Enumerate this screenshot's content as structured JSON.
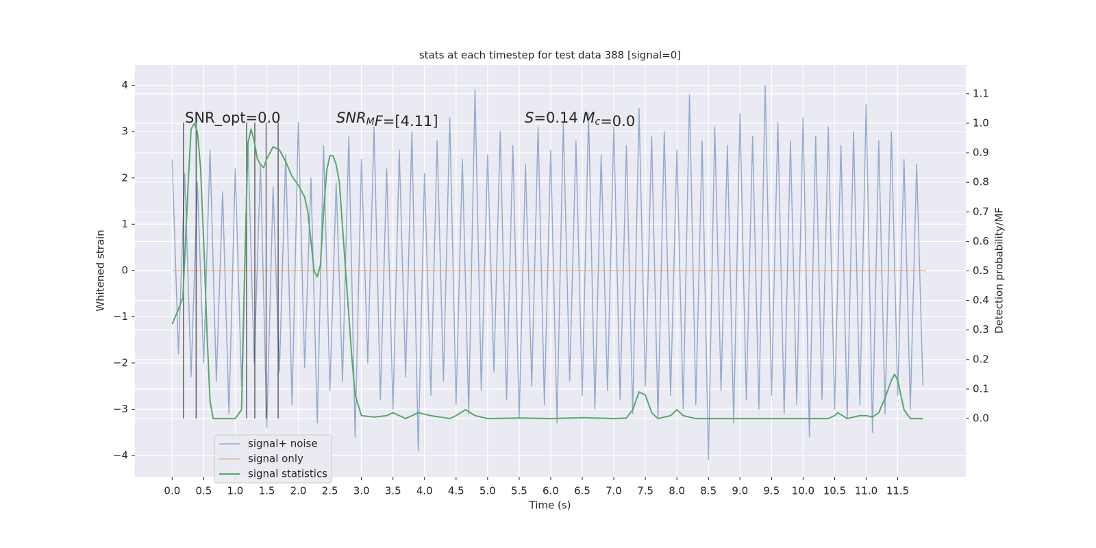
{
  "chart_data": {
    "type": "line",
    "title": "stats at each timestep for test data 388 [signal=0]",
    "xlabel": "Time (s)",
    "ylabel": "Whitened strain",
    "y2label": "Detection probability/MF",
    "xlim": [
      -0.59,
      12.58
    ],
    "ylim": [
      -4.46,
      4.44
    ],
    "y2lim": [
      -0.197,
      1.197
    ],
    "xticks": [
      {
        "value": 0,
        "label": "0.0"
      },
      {
        "value": 0.5,
        "label": "0.5"
      },
      {
        "value": 1,
        "label": "1.0"
      },
      {
        "value": 1.5,
        "label": "1.5"
      },
      {
        "value": 2,
        "label": "2.0"
      },
      {
        "value": 2.5,
        "label": "2.5"
      },
      {
        "value": 3,
        "label": "3.0"
      },
      {
        "value": 3.5,
        "label": "3.5"
      },
      {
        "value": 4,
        "label": "4.0"
      },
      {
        "value": 4.5,
        "label": "4.5"
      },
      {
        "value": 5,
        "label": "5.0"
      },
      {
        "value": 5.5,
        "label": "5.5"
      },
      {
        "value": 6,
        "label": "6.0"
      },
      {
        "value": 6.5,
        "label": "6.5"
      },
      {
        "value": 7,
        "label": "7.0"
      },
      {
        "value": 7.5,
        "label": "7.5"
      },
      {
        "value": 8,
        "label": "8.0"
      },
      {
        "value": 8.5,
        "label": "8.5"
      },
      {
        "value": 9,
        "label": "9.0"
      },
      {
        "value": 9.5,
        "label": "9.5"
      },
      {
        "value": 10,
        "label": "10.0"
      },
      {
        "value": 10.5,
        "label": "10.5"
      },
      {
        "value": 11,
        "label": "11.0"
      },
      {
        "value": 11.5,
        "label": "11.5"
      }
    ],
    "yticks": [
      {
        "value": -4,
        "label": "−4"
      },
      {
        "value": -3,
        "label": "−3"
      },
      {
        "value": -2,
        "label": "−2"
      },
      {
        "value": -1,
        "label": "−1"
      },
      0,
      1,
      2,
      3,
      4
    ],
    "y2ticks": [
      {
        "value": 0,
        "label": "0.0"
      },
      {
        "value": 0.1,
        "label": "0.1"
      },
      {
        "value": 0.2,
        "label": "0.2"
      },
      {
        "value": 0.3,
        "label": "0.3"
      },
      {
        "value": 0.4,
        "label": "0.4"
      },
      {
        "value": 0.5,
        "label": "0.5"
      },
      {
        "value": 0.6,
        "label": "0.6"
      },
      {
        "value": 0.7,
        "label": "0.7"
      },
      {
        "value": 0.8,
        "label": "0.8"
      },
      {
        "value": 0.9,
        "label": "0.9"
      },
      {
        "value": 1.0,
        "label": "1.0"
      },
      {
        "value": 1.1,
        "label": "1.1"
      }
    ],
    "grid": true,
    "series": [
      {
        "name": "signal+ noise",
        "color": "#4c72b0",
        "x": [
          0.0,
          0.1,
          0.2,
          0.3,
          0.4,
          0.5,
          0.6,
          0.7,
          0.8,
          0.9,
          1.0,
          1.1,
          1.2,
          1.3,
          1.4,
          1.5,
          1.6,
          1.7,
          1.8,
          1.9,
          2.0,
          2.1,
          2.2,
          2.3,
          2.4,
          2.5,
          2.6,
          2.7,
          2.8,
          2.9,
          3.0,
          3.1,
          3.2,
          3.3,
          3.4,
          3.5,
          3.6,
          3.7,
          3.8,
          3.9,
          4.0,
          4.1,
          4.2,
          4.3,
          4.4,
          4.5,
          4.6,
          4.7,
          4.8,
          4.9,
          5.0,
          5.1,
          5.2,
          5.3,
          5.4,
          5.5,
          5.6,
          5.7,
          5.8,
          5.9,
          6.0,
          6.1,
          6.2,
          6.3,
          6.4,
          6.5,
          6.6,
          6.7,
          6.8,
          6.9,
          7.0,
          7.1,
          7.2,
          7.3,
          7.4,
          7.5,
          7.6,
          7.7,
          7.8,
          7.9,
          8.0,
          8.1,
          8.2,
          8.3,
          8.4,
          8.5,
          8.6,
          8.7,
          8.8,
          8.9,
          9.0,
          9.1,
          9.2,
          9.3,
          9.4,
          9.5,
          9.6,
          9.7,
          9.8,
          9.9,
          10.0,
          10.1,
          10.2,
          10.3,
          10.4,
          10.5,
          10.6,
          10.7,
          10.8,
          10.9,
          11.0,
          11.1,
          11.2,
          11.3,
          11.4,
          11.5,
          11.6,
          11.7,
          11.8,
          11.9
        ],
        "values": [
          2.4,
          -1.8,
          2.1,
          -2.3,
          1.9,
          -2.0,
          2.6,
          -2.4,
          1.7,
          -3.1,
          2.2,
          -2.5,
          2.8,
          -2.0,
          2.3,
          -3.4,
          1.8,
          -2.2,
          2.5,
          -2.9,
          3.2,
          -2.1,
          2.0,
          -3.3,
          2.7,
          -2.6,
          1.9,
          -2.4,
          2.9,
          -3.6,
          2.4,
          -2.0,
          3.1,
          -2.8,
          2.2,
          -3.0,
          2.6,
          -2.3,
          3.0,
          -3.9,
          2.1,
          -2.7,
          2.8,
          -2.4,
          3.3,
          -2.9,
          2.4,
          -3.1,
          3.9,
          -2.6,
          2.5,
          -2.2,
          3.0,
          -2.8,
          2.7,
          -3.2,
          2.3,
          -2.5,
          3.1,
          -2.9,
          2.6,
          -3.3,
          3.2,
          -2.4,
          2.8,
          -2.7,
          3.4,
          -3.0,
          2.5,
          -2.6,
          3.1,
          -2.8,
          2.7,
          -3.1,
          3.5,
          -2.5,
          2.9,
          -3.2,
          3.0,
          -2.7,
          2.6,
          -3.0,
          3.8,
          -2.9,
          2.8,
          -4.1,
          3.1,
          -2.6,
          2.7,
          -3.3,
          3.4,
          -2.8,
          2.9,
          -3.0,
          4.0,
          -2.7,
          3.2,
          -3.1,
          2.8,
          -2.9,
          3.3,
          -3.6,
          2.9,
          -2.8,
          3.1,
          -3.0,
          2.7,
          -3.2,
          3.0,
          -2.9,
          3.6,
          -3.5,
          2.8,
          -3.1,
          3.0,
          -2.7,
          2.4,
          -3.0,
          2.3,
          -2.5
        ]
      },
      {
        "name": "signal only",
        "color": "#dd8452",
        "x": [
          0.0,
          11.95
        ],
        "values": [
          0,
          0
        ]
      },
      {
        "name": "signal statistics",
        "color": "#55a868",
        "axis": "y2",
        "x": [
          0.0,
          0.1,
          0.17,
          0.25,
          0.3,
          0.35,
          0.4,
          0.45,
          0.5,
          0.55,
          0.6,
          0.65,
          0.8,
          0.9,
          1.0,
          1.1,
          1.15,
          1.2,
          1.25,
          1.3,
          1.35,
          1.4,
          1.45,
          1.5,
          1.6,
          1.7,
          1.8,
          1.9,
          2.0,
          2.1,
          2.15,
          2.2,
          2.25,
          2.3,
          2.35,
          2.4,
          2.45,
          2.5,
          2.55,
          2.6,
          2.65,
          2.7,
          2.8,
          2.85,
          2.9,
          3.0,
          3.2,
          3.4,
          3.5,
          3.6,
          3.7,
          3.8,
          3.9,
          4.1,
          4.4,
          4.5,
          4.65,
          4.8,
          5.0,
          5.5,
          6.0,
          6.5,
          7.0,
          7.2,
          7.3,
          7.4,
          7.5,
          7.6,
          7.7,
          7.9,
          8.0,
          8.1,
          8.3,
          9.0,
          10.0,
          10.4,
          10.5,
          10.55,
          10.7,
          10.9,
          11.0,
          11.1,
          11.2,
          11.3,
          11.4,
          11.45,
          11.5,
          11.6,
          11.7,
          11.9
        ],
        "values": [
          0.32,
          0.37,
          0.41,
          0.78,
          0.98,
          1.0,
          0.97,
          0.85,
          0.6,
          0.3,
          0.06,
          0.0,
          0.0,
          0.0,
          0.0,
          0.03,
          0.5,
          0.93,
          0.98,
          0.94,
          0.88,
          0.86,
          0.85,
          0.88,
          0.92,
          0.91,
          0.87,
          0.82,
          0.79,
          0.75,
          0.7,
          0.6,
          0.5,
          0.48,
          0.52,
          0.7,
          0.84,
          0.89,
          0.89,
          0.86,
          0.8,
          0.65,
          0.35,
          0.2,
          0.08,
          0.01,
          0.005,
          0.01,
          0.02,
          0.01,
          0.0,
          0.01,
          0.02,
          0.01,
          0.0,
          0.01,
          0.03,
          0.01,
          0.0,
          0.002,
          0.0,
          0.003,
          0.0,
          0.002,
          0.03,
          0.09,
          0.08,
          0.02,
          0.0,
          0.01,
          0.03,
          0.01,
          0.0,
          0.0,
          0.0,
          0.0,
          0.01,
          0.02,
          0.0,
          0.01,
          0.01,
          0.005,
          0.02,
          0.07,
          0.13,
          0.15,
          0.13,
          0.03,
          0.0,
          0.0
        ]
      }
    ],
    "vlines": {
      "color": "#000000",
      "x": [
        0.18,
        0.38,
        1.18,
        1.31,
        1.49,
        1.68
      ],
      "ymin": -3.2,
      "ymax": 3.2
    },
    "annotations": [
      {
        "parts": [
          {
            "text": "SNR_opt=0.0"
          }
        ]
      },
      {
        "parts": [
          {
            "text": "SNR",
            "italic": true
          },
          {
            "text": "M",
            "italic": true,
            "sub": true
          },
          {
            "text": "F",
            "italic": true
          },
          {
            "text": "=[4.11]"
          }
        ]
      },
      {
        "parts": [
          {
            "text": "S",
            "italic": true
          },
          {
            "text": "=0.14   "
          },
          {
            "text": "M",
            "italic": true
          },
          {
            "text": "c",
            "italic": true,
            "sub": true
          },
          {
            "text": "=0.0"
          }
        ]
      }
    ]
  }
}
